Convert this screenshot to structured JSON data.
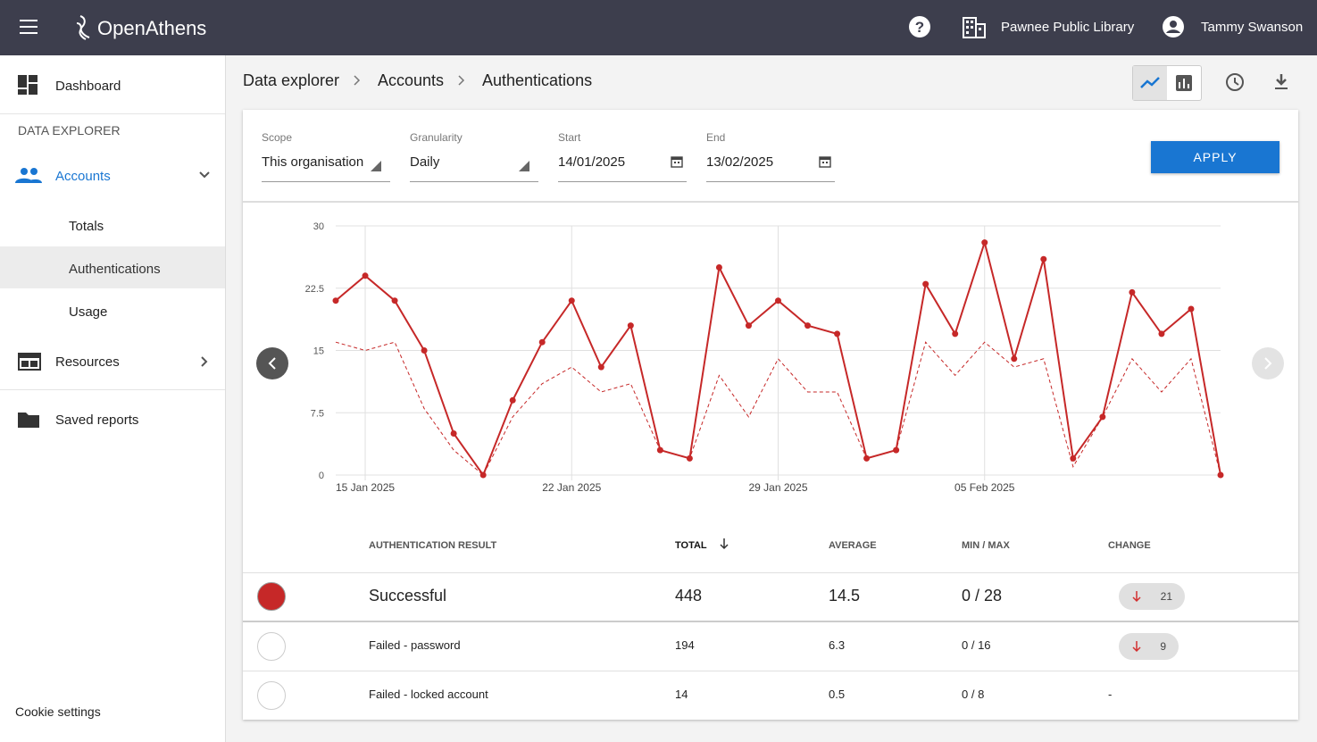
{
  "header": {
    "brand": "OpenAthens",
    "organisation": "Pawnee Public Library",
    "user": "Tammy Swanson"
  },
  "sidebar": {
    "dashboard": "Dashboard",
    "section": "DATA EXPLORER",
    "accounts": "Accounts",
    "accounts_children": [
      "Totals",
      "Authentications",
      "Usage"
    ],
    "resources": "Resources",
    "saved_reports": "Saved reports",
    "cookie_settings": "Cookie settings"
  },
  "breadcrumbs": [
    "Data explorer",
    "Accounts",
    "Authentications"
  ],
  "filters": [
    {
      "label": "Scope",
      "value": "This organisation"
    },
    {
      "label": "Granularity",
      "value": "Daily"
    },
    {
      "label": "Start",
      "value": "14/01/2025"
    },
    {
      "label": "End",
      "value": "13/02/2025"
    }
  ],
  "apply": "APPLY",
  "chart_data": {
    "type": "line",
    "categories": [
      null,
      "15 Jan 2025",
      null,
      null,
      null,
      null,
      null,
      null,
      "22 Jan 2025",
      null,
      null,
      null,
      null,
      null,
      null,
      "29 Jan 2025",
      null,
      null,
      null,
      null,
      null,
      null,
      "05 Feb 2025",
      null,
      null,
      null,
      null,
      null,
      null,
      null,
      null
    ],
    "series": [
      {
        "color": "#c62828",
        "dashed": false,
        "markers": true,
        "values": [
          21,
          24,
          21,
          15,
          5,
          0,
          9,
          16,
          21,
          13,
          18,
          3,
          2,
          25,
          18,
          21,
          18,
          17,
          2,
          3,
          23,
          17,
          28,
          14,
          26,
          2,
          7,
          22,
          17,
          20,
          0
        ]
      },
      {
        "color": "#c62828",
        "dashed": true,
        "markers": false,
        "values": [
          16,
          15,
          16,
          8,
          3,
          0,
          7,
          11,
          13,
          10,
          11,
          3,
          2,
          12,
          7,
          14,
          10,
          10,
          2,
          3,
          16,
          12,
          16,
          13,
          14,
          1,
          7,
          14,
          10,
          14,
          0
        ]
      }
    ],
    "ylim": [
      0,
      30
    ],
    "yticks": [
      0,
      7.5,
      15,
      22.5,
      30
    ],
    "grid": true
  },
  "table": {
    "headers": [
      "AUTHENTICATION RESULT",
      "TOTAL",
      "AVERAGE",
      "MIN / MAX",
      "CHANGE"
    ],
    "rows": [
      [
        "Successful",
        448,
        14.5,
        "0 / 28",
        21
      ],
      [
        "Failed - password",
        194,
        6.3,
        "0 / 16",
        9
      ],
      [
        "Failed - locked account",
        14,
        0.5,
        "0 / 8",
        "-"
      ]
    ]
  }
}
